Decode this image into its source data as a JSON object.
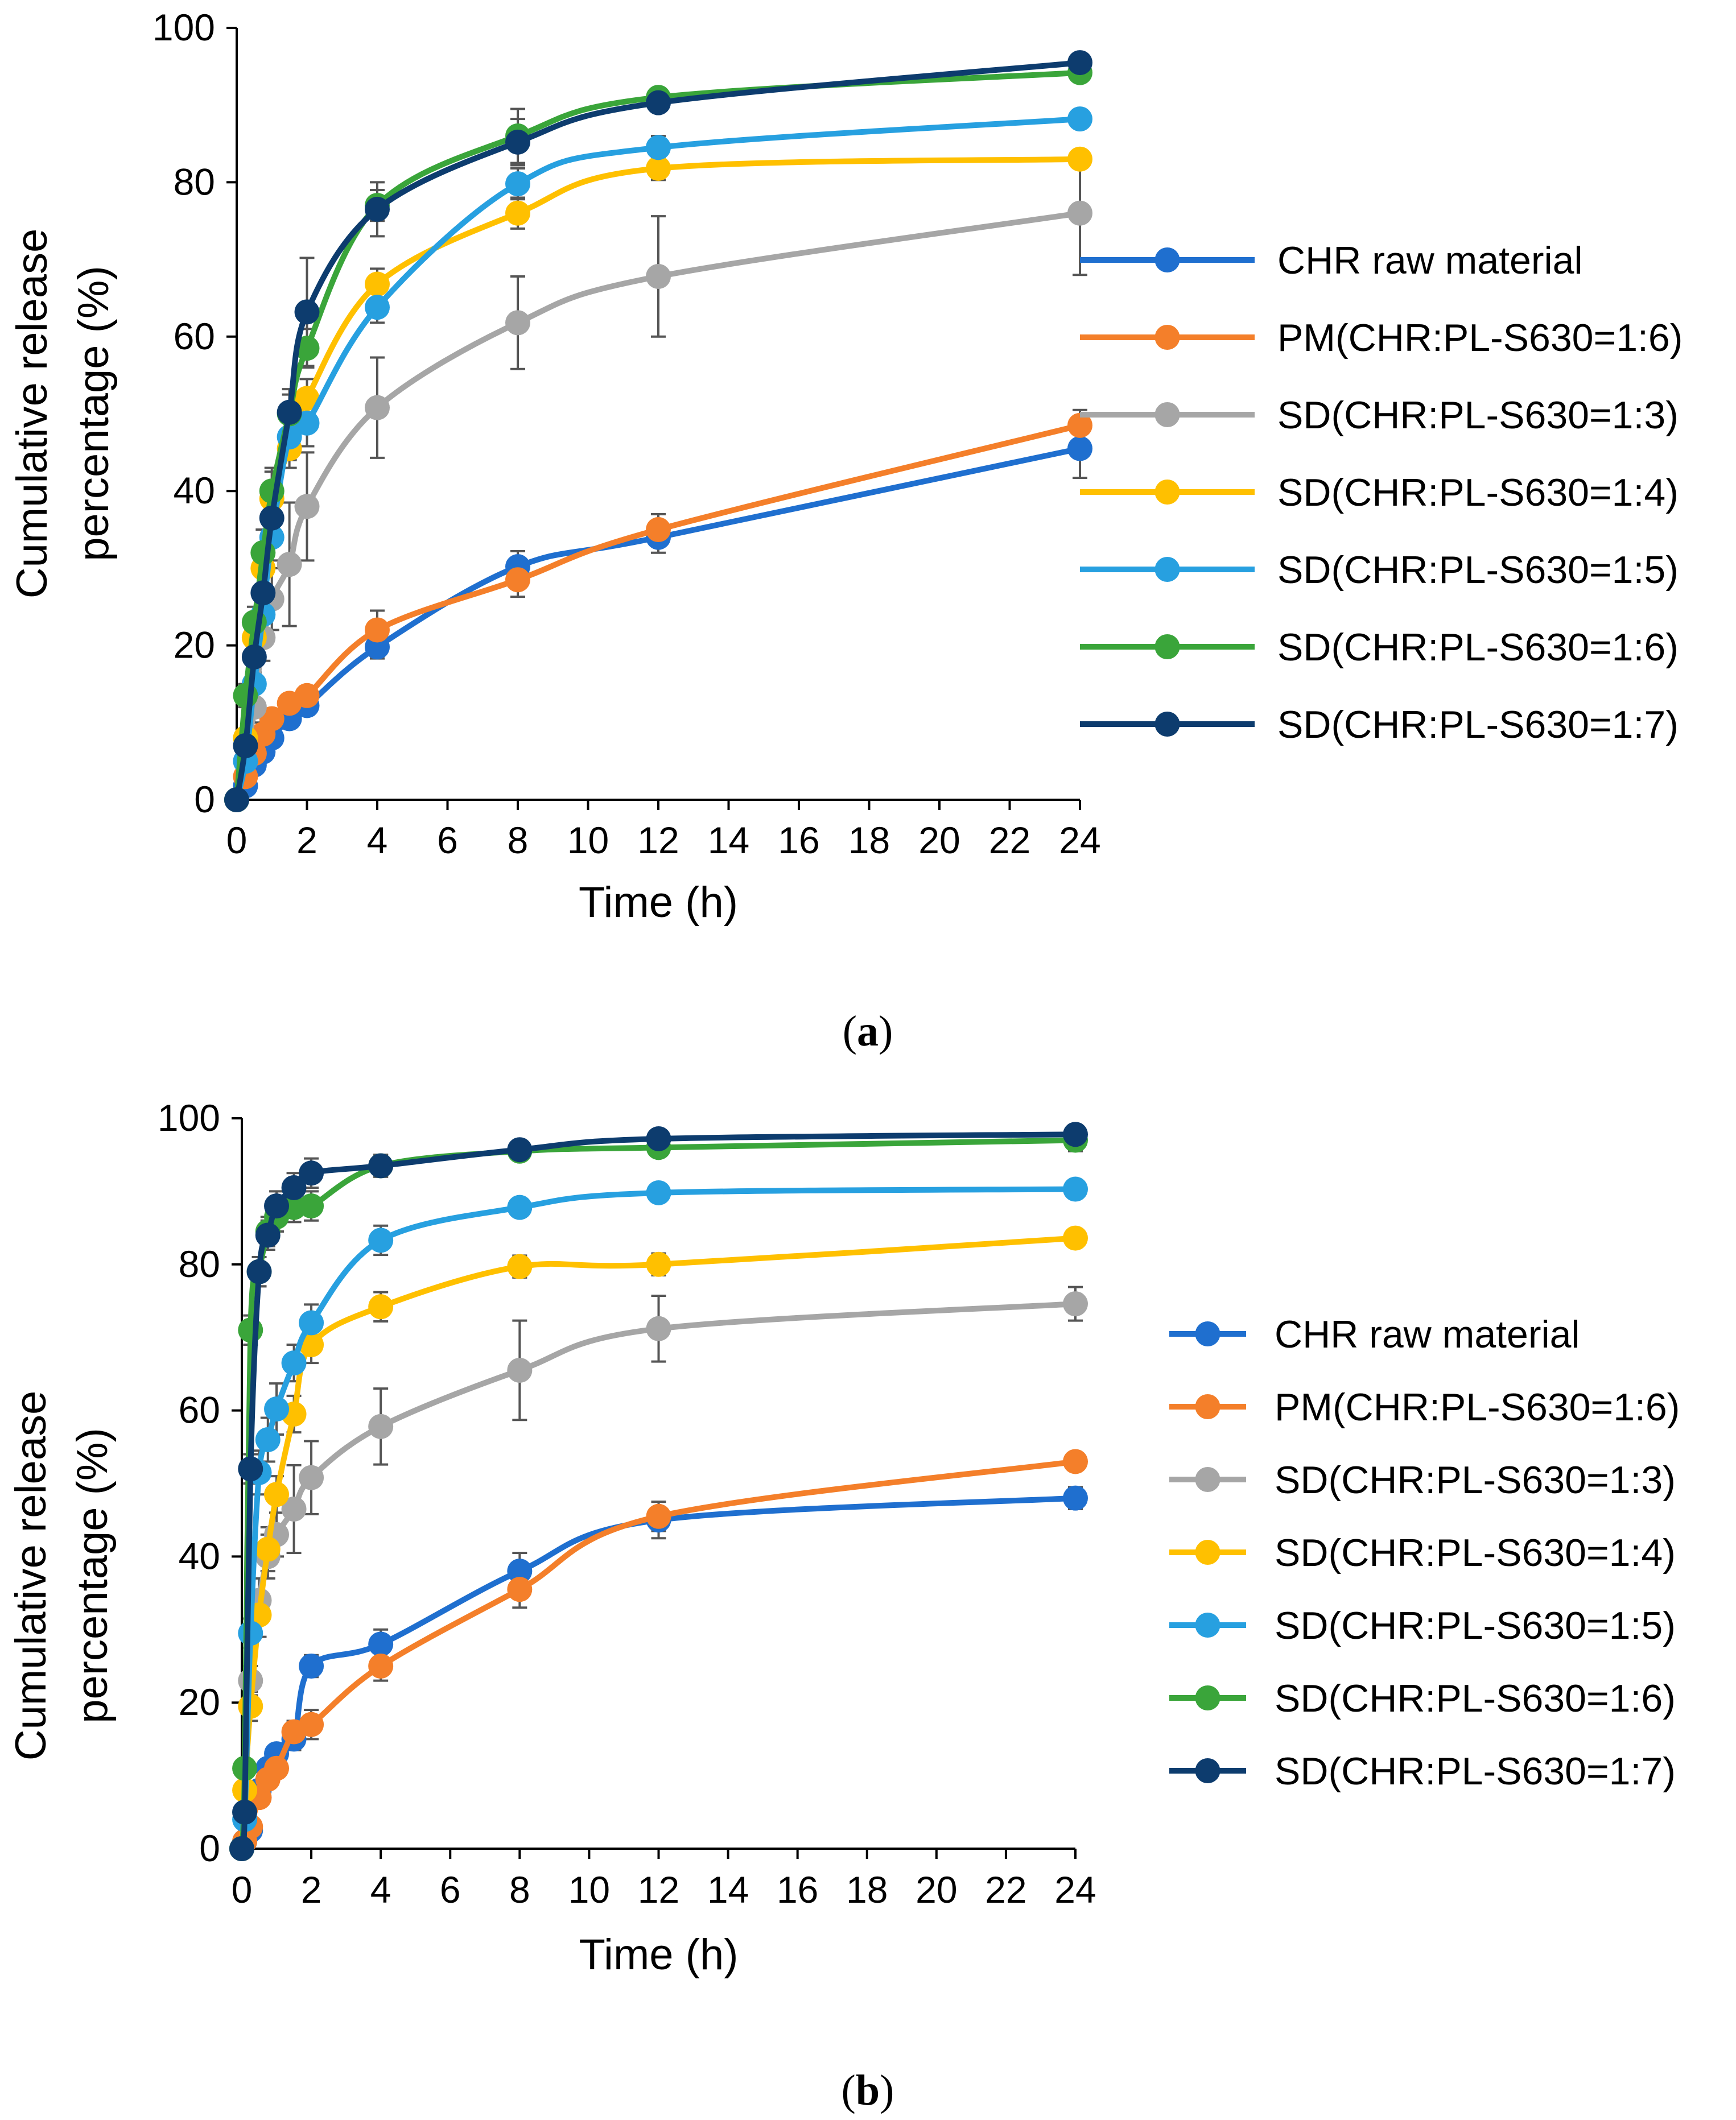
{
  "chart_data": [
    {
      "type": "line",
      "panel_label": "a",
      "xlabel": "Time (h)",
      "ylabel_lines": [
        "Cumulative release",
        "percentage  (%)"
      ],
      "xticks": [
        0,
        2,
        4,
        6,
        8,
        10,
        12,
        14,
        16,
        18,
        20,
        22,
        24
      ],
      "yticks": [
        0,
        20,
        40,
        60,
        80,
        100
      ],
      "xlim": [
        0,
        24
      ],
      "ylim": [
        0,
        100
      ],
      "legend_position": "right",
      "x": [
        0,
        0.25,
        0.5,
        0.75,
        1,
        1.5,
        2,
        4,
        8,
        12,
        24
      ],
      "series": [
        {
          "name": "CHR raw material",
          "color": "#1f6fcf",
          "values": [
            0,
            1.8,
            4.5,
            6.2,
            8.0,
            10.5,
            12.2,
            19.8,
            30.2,
            34.0,
            45.5
          ],
          "errors": [
            0,
            0.5,
            0.7,
            0.8,
            0.9,
            1,
            1.2,
            1.5,
            2,
            2,
            3.8
          ]
        },
        {
          "name": "PM(CHR:PL-S630=1:6)",
          "color": "#f47f2a",
          "values": [
            0,
            3.0,
            6.0,
            8.5,
            10.5,
            12.5,
            13.5,
            22.0,
            28.5,
            35.0,
            48.5
          ],
          "errors": [
            0,
            0.5,
            0.7,
            0.8,
            0.9,
            1,
            1.2,
            2.5,
            2.2,
            2,
            2
          ]
        },
        {
          "name": "SD(CHR:PL-S630=1:3)",
          "color": "#a6a6a6",
          "values": [
            0,
            5.0,
            12.0,
            21.0,
            26.0,
            30.5,
            38.0,
            50.8,
            61.8,
            67.8,
            76.0
          ],
          "errors": [
            0,
            1,
            2,
            3,
            4,
            8,
            7,
            6.5,
            6,
            7.8,
            8
          ]
        },
        {
          "name": "SD(CHR:PL-S630=1:4)",
          "color": "#ffc000",
          "values": [
            0,
            8.0,
            21.0,
            30.0,
            39.0,
            45.5,
            52.0,
            66.8,
            76.0,
            81.8,
            83.0
          ],
          "errors": [
            0,
            1,
            2,
            3,
            3.5,
            2.5,
            2.5,
            2,
            2,
            1.5,
            1
          ]
        },
        {
          "name": "SD(CHR:PL-S630=1:5)",
          "color": "#27a0e0",
          "values": [
            0,
            5.0,
            15.0,
            24.0,
            34.0,
            47.0,
            48.8,
            63.8,
            79.8,
            84.5,
            88.2
          ],
          "errors": [
            0,
            1,
            2,
            3,
            3,
            3,
            3,
            2,
            2,
            1.5,
            1
          ]
        },
        {
          "name": "SD(CHR:PL-S630=1:6)",
          "color": "#3aa53a",
          "values": [
            0,
            13.5,
            23.0,
            32.0,
            40.0,
            50.0,
            58.5,
            77.0,
            86.0,
            91.0,
            94.2
          ],
          "errors": [
            0,
            1.5,
            2,
            3,
            3,
            2.5,
            2.5,
            2,
            3.5,
            1,
            1
          ]
        },
        {
          "name": "SD(CHR:PL-S630=1:7)",
          "color": "#0d3c6e",
          "values": [
            0,
            7.0,
            18.5,
            26.8,
            36.5,
            50.2,
            63.2,
            76.5,
            85.2,
            90.3,
            95.5
          ],
          "errors": [
            0,
            1.5,
            2,
            3,
            3,
            3,
            7,
            3.5,
            3,
            1,
            1
          ]
        }
      ]
    },
    {
      "type": "line",
      "panel_label": "b",
      "xlabel": "Time (h)",
      "ylabel_lines": [
        "Cumulative release",
        "percentage (%)"
      ],
      "xticks": [
        0,
        2,
        4,
        6,
        8,
        10,
        12,
        14,
        16,
        18,
        20,
        22,
        24
      ],
      "yticks": [
        0,
        20,
        40,
        60,
        80,
        100
      ],
      "xlim": [
        0,
        24
      ],
      "ylim": [
        0,
        100
      ],
      "legend_position": "right",
      "x": [
        0,
        0.083,
        0.25,
        0.5,
        0.75,
        1,
        1.5,
        2,
        4,
        8,
        12,
        24
      ],
      "series": [
        {
          "name": "CHR raw material",
          "color": "#1f6fcf",
          "values": [
            0,
            1,
            2.5,
            8,
            11,
            13,
            15,
            25,
            28,
            38,
            45,
            48
          ],
          "errors": [
            0,
            0.5,
            0.6,
            0.8,
            1,
            1.2,
            1.5,
            1.5,
            2,
            2.5,
            2.5,
            1.5
          ]
        },
        {
          "name": "PM(CHR:PL-S630=1:6)",
          "color": "#f47f2a",
          "values": [
            0,
            1,
            3,
            7,
            9.5,
            11,
            16,
            17,
            25,
            35.5,
            45.5,
            53
          ],
          "errors": [
            0,
            0.5,
            0.6,
            0.8,
            1,
            1.2,
            1.5,
            2,
            2,
            2.5,
            2,
            1
          ]
        },
        {
          "name": "SD(CHR:PL-S630=1:3)",
          "color": "#a6a6a6",
          "values": [
            0,
            5,
            23,
            34,
            40,
            43,
            46.5,
            50.8,
            57.8,
            65.5,
            71.2,
            74.6
          ],
          "errors": [
            0,
            1,
            2,
            3,
            3,
            3,
            6,
            5,
            5.2,
            6.8,
            4.5,
            2.3
          ]
        },
        {
          "name": "SD(CHR:PL-S630=1:4)",
          "color": "#ffc000",
          "values": [
            0,
            8,
            19.5,
            32,
            41,
            48.5,
            59.5,
            69,
            74.2,
            79.7,
            80,
            83.6
          ],
          "errors": [
            0,
            1,
            2,
            3,
            3,
            2.5,
            2.5,
            2.5,
            2,
            1.5,
            1.5,
            1
          ]
        },
        {
          "name": "SD(CHR:PL-S630=1:5)",
          "color": "#27a0e0",
          "values": [
            0,
            4,
            29.5,
            51.5,
            56,
            60.2,
            66.5,
            72,
            83.3,
            87.8,
            89.8,
            90.3
          ],
          "errors": [
            0,
            1,
            2,
            3,
            3,
            3.5,
            2.5,
            2.5,
            2,
            1,
            1,
            1
          ]
        },
        {
          "name": "SD(CHR:PL-S630=1:6)",
          "color": "#3aa53a",
          "values": [
            0,
            11,
            71,
            79,
            84.5,
            86.5,
            87.8,
            88,
            93.5,
            95.5,
            96,
            97
          ],
          "errors": [
            0,
            1,
            2,
            2,
            2,
            2,
            2,
            2,
            1.5,
            1,
            1,
            1.5
          ]
        },
        {
          "name": "SD(CHR:PL-S630=1:7)",
          "color": "#0d3c6e",
          "values": [
            0,
            5,
            52,
            79,
            84,
            88,
            90.5,
            92.5,
            93.5,
            95.7,
            97.2,
            97.8
          ],
          "errors": [
            0,
            1,
            2,
            2,
            2,
            2,
            2,
            2,
            1.5,
            1,
            1,
            1
          ]
        }
      ]
    }
  ]
}
